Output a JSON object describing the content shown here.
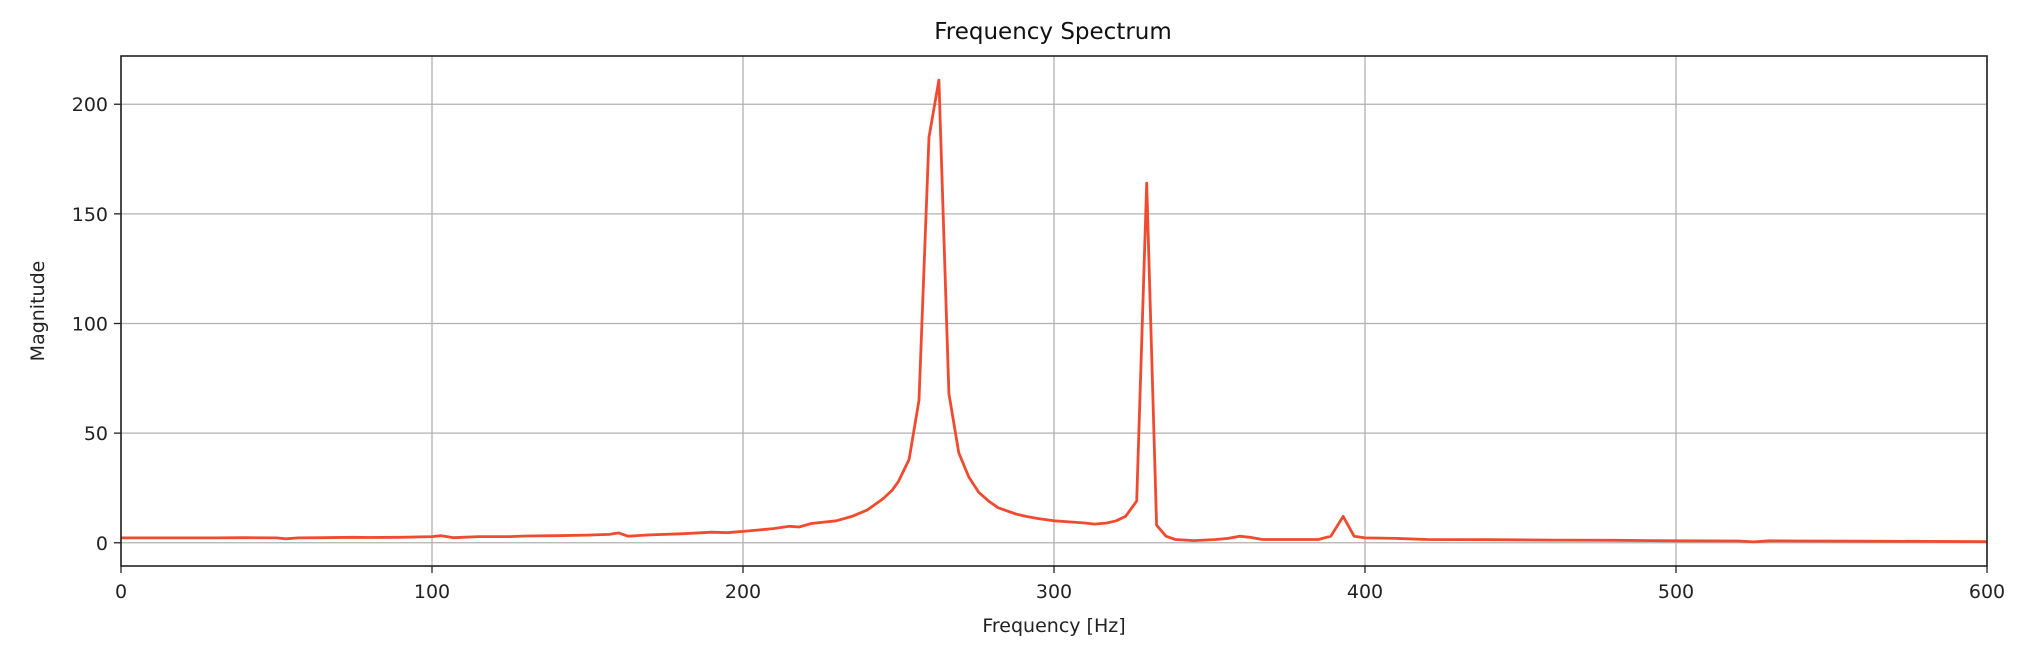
{
  "chart_data": {
    "type": "line",
    "title": "Frequency Spectrum",
    "xlabel": "Frequency [Hz]",
    "ylabel": "Magnitude",
    "xlim": [
      0,
      600
    ],
    "ylim": [
      -10.6,
      222
    ],
    "xticks": [
      0,
      100,
      200,
      300,
      400,
      500,
      600
    ],
    "yticks": [
      0,
      50,
      100,
      150,
      200
    ],
    "grid": true,
    "line_color": "#f04a30",
    "x": [
      0,
      10,
      20,
      30,
      40,
      50,
      53,
      57,
      65,
      75,
      80,
      90,
      100,
      103,
      107,
      115,
      125,
      130,
      140,
      150,
      157,
      160,
      163,
      170,
      180,
      190,
      195,
      200,
      205,
      210,
      215,
      218,
      222,
      230,
      235,
      240,
      245,
      248,
      250,
      253.4,
      256.6,
      259.8,
      263.0,
      266.2,
      269.4,
      272.6,
      275.8,
      279,
      282,
      285,
      288,
      291,
      295,
      300,
      305,
      310,
      313,
      317,
      320,
      323,
      326.6,
      329.8,
      333,
      336,
      339,
      345,
      352,
      356,
      359.6,
      363,
      367,
      375,
      385,
      389,
      393,
      396.5,
      400,
      410,
      420,
      440,
      460,
      480,
      500,
      520,
      525,
      530,
      540,
      560,
      580,
      600
    ],
    "y": [
      2.2,
      2.2,
      2.2,
      2.2,
      2.3,
      2.2,
      1.8,
      2.2,
      2.3,
      2.5,
      2.4,
      2.5,
      2.8,
      3.2,
      2.3,
      2.8,
      2.8,
      3.1,
      3.2,
      3.5,
      3.8,
      4.5,
      3.0,
      3.6,
      4.1,
      4.8,
      4.6,
      5.2,
      5.8,
      6.5,
      7.5,
      7.2,
      8.8,
      10,
      12,
      15,
      20,
      24,
      28,
      38,
      65,
      185,
      211,
      68,
      41,
      30,
      23,
      19,
      16,
      14.5,
      13,
      12,
      11,
      10,
      9.5,
      9,
      8.5,
      9,
      10,
      12,
      19,
      164,
      8,
      3,
      1.5,
      1,
      1.5,
      2,
      3,
      2.5,
      1.5,
      1.5,
      1.5,
      3,
      12,
      3,
      2.2,
      2,
      1.5,
      1.4,
      1.2,
      1.1,
      0.9,
      0.8,
      0.4,
      0.9,
      0.8,
      0.7,
      0.6,
      0.5
    ]
  }
}
